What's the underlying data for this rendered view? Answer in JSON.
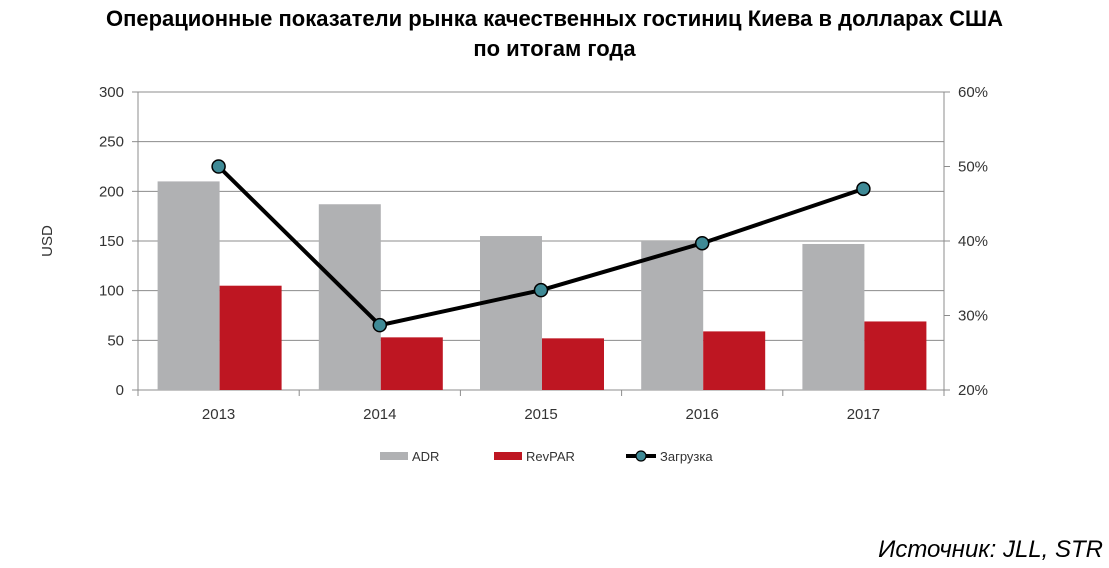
{
  "title": {
    "line1": "Операционные показатели рынка качественных гостиниц Киева в долларах США",
    "line2": "по итогам года"
  },
  "source": "Источник: JLL, STR",
  "chart_data": {
    "type": "bar",
    "categories": [
      "2013",
      "2014",
      "2015",
      "2016",
      "2017"
    ],
    "series": [
      {
        "name": "ADR",
        "type": "bar",
        "axis": "left",
        "color": "#b0b1b3",
        "values": [
          210,
          187,
          155,
          150,
          147
        ]
      },
      {
        "name": "RevPAR",
        "type": "bar",
        "axis": "left",
        "color": "#be1622",
        "values": [
          105,
          53,
          52,
          59,
          69
        ]
      },
      {
        "name": "Загрузка",
        "type": "line",
        "axis": "right",
        "color": "#000000",
        "marker_color": "#3f8a96",
        "values": [
          50,
          28.7,
          33.4,
          39.7,
          47
        ]
      }
    ],
    "ylabel": "USD",
    "ylim": [
      0,
      300
    ],
    "yticks": [
      "0",
      "50",
      "100",
      "150",
      "200",
      "250",
      "300"
    ],
    "y2lim": [
      20,
      60
    ],
    "y2ticks": [
      "20%",
      "30%",
      "40%",
      "50%",
      "60%"
    ],
    "grid": true,
    "legend_position": "bottom"
  }
}
